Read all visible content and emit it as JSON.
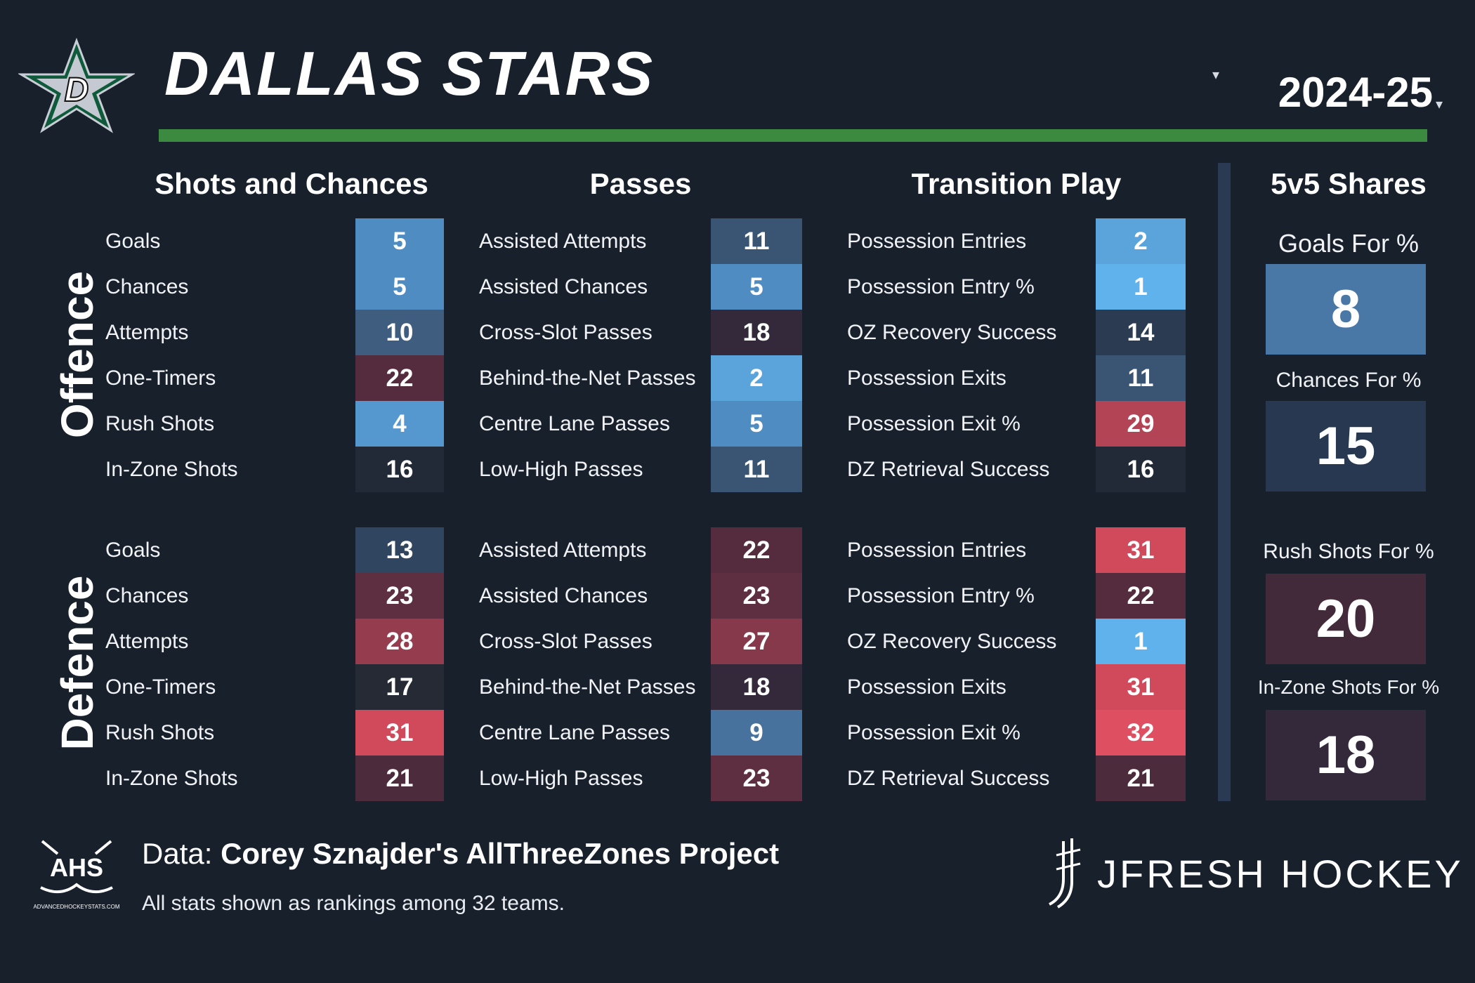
{
  "header": {
    "team": "DALLAS STARS",
    "season": "2024-25"
  },
  "colors": {
    "rank_1": "#5fb2ec",
    "rank_2": "#5aa3db",
    "rank_4": "#5597cf",
    "rank_5": "#4f8cc2",
    "rank_8": "#4978a6",
    "rank_9": "#47729d",
    "rank_10": "#3f5e7f",
    "rank_11": "#3a5574",
    "rank_13": "#2f4560",
    "rank_14": "#2b3b52",
    "rank_15": "#283850",
    "rank_16": "#222a38",
    "rank_17": "#262a35",
    "rank_18": "#33293a",
    "rank_20": "#432a3a",
    "rank_21": "#4b2b3c",
    "rank_22": "#542c3e",
    "rank_23": "#5e2e41",
    "rank_27": "#87394c",
    "rank_28": "#953c4f",
    "rank_29": "#b24456",
    "rank_31": "#d04a5c",
    "rank_32": "#de4f61",
    "green_rule": "#3c8a40",
    "background": "#18202c"
  },
  "sections": {
    "shots": "Shots and Chances",
    "passes": "Passes",
    "transition": "Transition Play",
    "shares": "5v5 Shares"
  },
  "side_labels": {
    "offence": "Offence",
    "defence": "Defence"
  },
  "offence": {
    "shots": [
      {
        "label": "Goals",
        "rank": 5
      },
      {
        "label": "Chances",
        "rank": 5
      },
      {
        "label": "Attempts",
        "rank": 10
      },
      {
        "label": "One-Timers",
        "rank": 22
      },
      {
        "label": "Rush Shots",
        "rank": 4
      },
      {
        "label": "In-Zone Shots",
        "rank": 16
      }
    ],
    "passes": [
      {
        "label": "Assisted Attempts",
        "rank": 11
      },
      {
        "label": "Assisted Chances",
        "rank": 5
      },
      {
        "label": "Cross-Slot Passes",
        "rank": 18
      },
      {
        "label": "Behind-the-Net Passes",
        "rank": 2
      },
      {
        "label": "Centre Lane Passes",
        "rank": 5
      },
      {
        "label": "Low-High Passes",
        "rank": 11
      }
    ],
    "transition": [
      {
        "label": "Possession Entries",
        "rank": 2
      },
      {
        "label": "Possession Entry %",
        "rank": 1
      },
      {
        "label": "OZ Recovery Success",
        "rank": 14
      },
      {
        "label": "Possession Exits",
        "rank": 11
      },
      {
        "label": "Possession Exit %",
        "rank": 29
      },
      {
        "label": "DZ Retrieval Success",
        "rank": 16
      }
    ]
  },
  "defence": {
    "shots": [
      {
        "label": "Goals",
        "rank": 13
      },
      {
        "label": "Chances",
        "rank": 23
      },
      {
        "label": "Attempts",
        "rank": 28
      },
      {
        "label": "One-Timers",
        "rank": 17
      },
      {
        "label": "Rush Shots",
        "rank": 31
      },
      {
        "label": "In-Zone Shots",
        "rank": 21
      }
    ],
    "passes": [
      {
        "label": "Assisted Attempts",
        "rank": 22
      },
      {
        "label": "Assisted Chances",
        "rank": 23
      },
      {
        "label": "Cross-Slot Passes",
        "rank": 27
      },
      {
        "label": "Behind-the-Net Passes",
        "rank": 18
      },
      {
        "label": "Centre Lane Passes",
        "rank": 9
      },
      {
        "label": "Low-High Passes",
        "rank": 23
      }
    ],
    "transition": [
      {
        "label": "Possession Entries",
        "rank": 31
      },
      {
        "label": "Possession Entry %",
        "rank": 22
      },
      {
        "label": "OZ Recovery Success",
        "rank": 1
      },
      {
        "label": "Possession Exits",
        "rank": 31
      },
      {
        "label": "Possession Exit %",
        "rank": 32
      },
      {
        "label": "DZ Retrieval Success",
        "rank": 21
      }
    ]
  },
  "shares": [
    {
      "label": "Goals For %",
      "rank": 8
    },
    {
      "label": "Chances For %",
      "rank": 15
    },
    {
      "label": "Rush Shots For %",
      "rank": 20
    },
    {
      "label": "In-Zone Shots For %",
      "rank": 18
    }
  ],
  "footer": {
    "data_prefix": "Data: ",
    "data_source": "Corey Sznajder's AllThreeZones Project",
    "note": "All stats shown as rankings among 32 teams.",
    "ahs_text": "AHS",
    "ahs_url": "ADVANCEDHOCKEYSTATS.COM",
    "brand": "JFRESH HOCKEY"
  }
}
